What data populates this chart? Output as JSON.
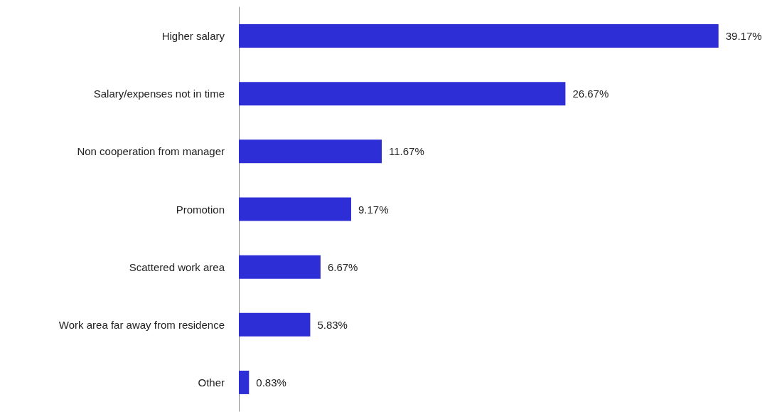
{
  "chart_data": {
    "type": "bar",
    "orientation": "horizontal",
    "categories": [
      "Higher salary",
      "Salary/expenses not in time",
      "Non cooperation from manager",
      "Promotion",
      "Scattered work area",
      "Work area far away from residence",
      "Other"
    ],
    "values": [
      39.17,
      26.67,
      11.67,
      9.17,
      6.67,
      5.83,
      0.83
    ],
    "value_labels": [
      "39.17%",
      "26.67%",
      "11.67%",
      "9.17%",
      "6.67%",
      "5.83%",
      "0.83%"
    ],
    "color": "#2e2ed6"
  }
}
